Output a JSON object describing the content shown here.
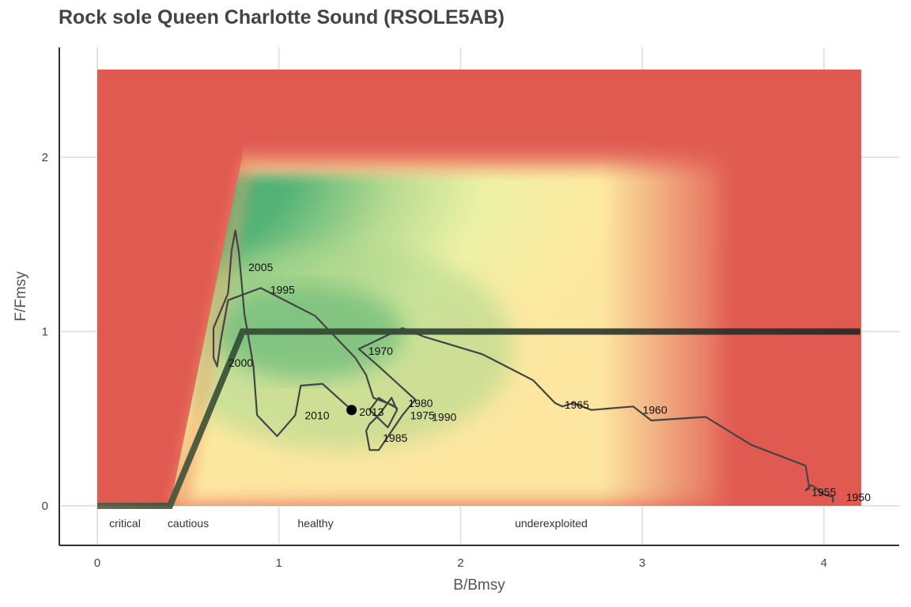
{
  "chart_data": {
    "type": "line",
    "title": "Rock sole Queen Charlotte Sound (RSOLE5AB)",
    "xlabel": "B/Bmsy",
    "ylabel": "F/Fmsy",
    "xlim": [
      0,
      4.2
    ],
    "ylim": [
      0,
      2.5
    ],
    "xticks": [
      "0",
      "1",
      "2",
      "3",
      "4"
    ],
    "yticks": [
      "0",
      "1",
      "2"
    ],
    "grid": true,
    "zones": [
      "critical",
      "cautious",
      "healthy",
      "underexploited"
    ],
    "reference_line": {
      "points": [
        [
          0,
          0
        ],
        [
          0.4,
          0
        ],
        [
          0.8,
          1
        ],
        [
          4.2,
          1
        ]
      ]
    },
    "colors": {
      "background": "#e05a52",
      "healthy": "#40a870",
      "neutral": "#fff0a8",
      "trajectory": "#444444",
      "reference": "#2a2a2a"
    },
    "trajectory": [
      [
        4.05,
        0.02
      ],
      [
        4.05,
        0.05
      ],
      [
        3.99,
        0.07
      ],
      [
        3.96,
        0.1
      ],
      [
        3.93,
        0.12
      ],
      [
        3.9,
        0.09
      ],
      [
        3.92,
        0.1
      ],
      [
        3.9,
        0.23
      ],
      [
        3.6,
        0.35
      ],
      [
        3.35,
        0.51
      ],
      [
        3.05,
        0.49
      ],
      [
        2.95,
        0.57
      ],
      [
        2.72,
        0.55
      ],
      [
        2.62,
        0.59
      ],
      [
        2.56,
        0.57
      ],
      [
        2.52,
        0.59
      ],
      [
        2.4,
        0.72
      ],
      [
        2.12,
        0.87
      ],
      [
        1.8,
        0.97
      ],
      [
        1.68,
        1.02
      ],
      [
        1.58,
        0.97
      ],
      [
        1.44,
        0.9
      ],
      [
        1.55,
        0.8
      ],
      [
        1.75,
        0.61
      ],
      [
        1.68,
        0.52
      ],
      [
        1.55,
        0.32
      ],
      [
        1.5,
        0.32
      ],
      [
        1.48,
        0.43
      ],
      [
        1.5,
        0.47
      ],
      [
        1.55,
        0.52
      ],
      [
        1.62,
        0.62
      ],
      [
        1.65,
        0.55
      ],
      [
        1.6,
        0.45
      ],
      [
        1.5,
        0.55
      ],
      [
        1.55,
        0.62
      ],
      [
        1.58,
        0.6
      ],
      [
        1.65,
        0.56
      ],
      [
        1.62,
        0.58
      ],
      [
        1.52,
        0.62
      ],
      [
        1.48,
        0.75
      ],
      [
        1.42,
        0.85
      ],
      [
        1.2,
        1.09
      ],
      [
        0.9,
        1.25
      ],
      [
        0.72,
        1.18
      ],
      [
        0.68,
        0.95
      ],
      [
        0.66,
        0.8
      ],
      [
        0.64,
        0.85
      ],
      [
        0.64,
        1.02
      ],
      [
        0.72,
        1.22
      ],
      [
        0.74,
        1.47
      ],
      [
        0.76,
        1.58
      ],
      [
        0.78,
        1.45
      ],
      [
        0.81,
        1.1
      ],
      [
        0.86,
        0.8
      ],
      [
        0.88,
        0.52
      ],
      [
        0.99,
        0.4
      ],
      [
        1.09,
        0.52
      ],
      [
        1.12,
        0.69
      ],
      [
        1.24,
        0.7
      ],
      [
        1.4,
        0.55
      ]
    ],
    "year_labels": [
      {
        "year": "1950",
        "x": 4.19,
        "y": 0.05
      },
      {
        "year": "1955",
        "x": 4.0,
        "y": 0.08
      },
      {
        "year": "1960",
        "x": 3.07,
        "y": 0.55
      },
      {
        "year": "1965",
        "x": 2.64,
        "y": 0.58
      },
      {
        "year": "1970",
        "x": 1.56,
        "y": 0.89
      },
      {
        "year": "1975",
        "x": 1.79,
        "y": 0.52
      },
      {
        "year": "1980",
        "x": 1.78,
        "y": 0.59
      },
      {
        "year": "1985",
        "x": 1.64,
        "y": 0.39
      },
      {
        "year": "1990",
        "x": 1.91,
        "y": 0.51
      },
      {
        "year": "1995",
        "x": 1.02,
        "y": 1.24
      },
      {
        "year": "2000",
        "x": 0.79,
        "y": 0.82
      },
      {
        "year": "2005",
        "x": 0.9,
        "y": 1.37
      },
      {
        "year": "2010",
        "x": 1.21,
        "y": 0.52
      },
      {
        "year": "2013",
        "x": 1.51,
        "y": 0.54
      }
    ],
    "current_point": {
      "year": "2013",
      "x": 1.4,
      "y": 0.55
    }
  }
}
